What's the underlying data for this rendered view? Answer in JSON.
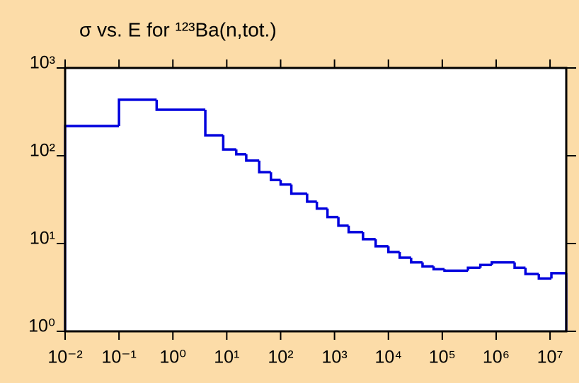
{
  "chart_data": {
    "type": "histogram",
    "title": "σ vs. E for ¹²³Ba(n,tot.)",
    "bins": [
      0.01,
      0.1,
      0.5,
      4,
      8.6,
      15,
      23,
      40,
      66,
      100,
      158,
      310,
      470,
      740,
      1180,
      1830,
      3380,
      5800,
      10000,
      16200,
      26400,
      43000,
      69000,
      110000,
      300000,
      510000,
      830000,
      2200000,
      3500000,
      6200000,
      10600000,
      20000000
    ],
    "values": [
      218,
      435,
      334,
      171,
      118,
      104,
      88,
      65,
      53,
      47,
      37,
      30,
      25,
      20,
      16,
      13.5,
      11.2,
      9.3,
      8.0,
      6.9,
      6.1,
      5.5,
      5.1,
      4.9,
      5.3,
      5.7,
      6.1,
      5.3,
      4.5,
      4.0,
      4.6
    ],
    "color": "#0000dd",
    "xscale": "log",
    "yscale": "log",
    "xlim": [
      0.01,
      20000000
    ],
    "ylim": [
      1,
      1000
    ],
    "xticks": [
      {
        "value": 0.01,
        "label": "10⁻²"
      },
      {
        "value": 0.1,
        "label": "10⁻¹"
      },
      {
        "value": 1,
        "label": "10⁰"
      },
      {
        "value": 10,
        "label": "10¹"
      },
      {
        "value": 100,
        "label": "10²"
      },
      {
        "value": 1000,
        "label": "10³"
      },
      {
        "value": 10000,
        "label": "10⁴"
      },
      {
        "value": 100000,
        "label": "10⁵"
      },
      {
        "value": 1000000,
        "label": "10⁶"
      },
      {
        "value": 10000000,
        "label": "10⁷"
      }
    ],
    "yticks": [
      {
        "value": 1,
        "label": "10⁰"
      },
      {
        "value": 10,
        "label": "10¹"
      },
      {
        "value": 100,
        "label": "10²"
      },
      {
        "value": 1000,
        "label": "10³"
      }
    ],
    "grid": false
  }
}
